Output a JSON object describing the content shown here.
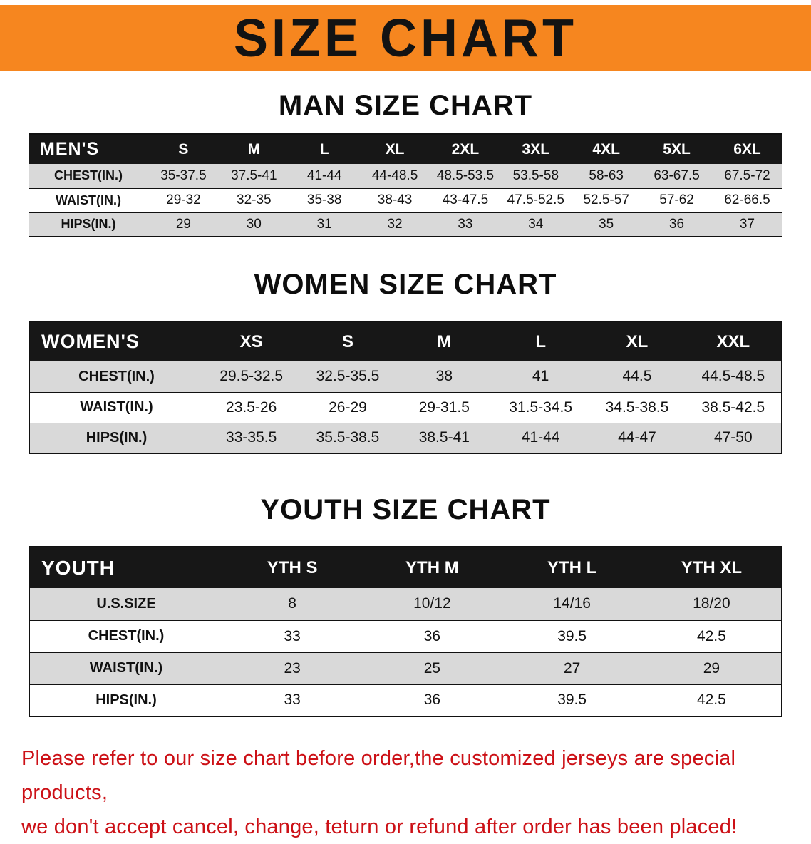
{
  "banner": {
    "title": "SIZE CHART",
    "bg_color": "#f6861f",
    "text_color": "#131313"
  },
  "colors": {
    "table_header_bg": "#171717",
    "row_alt_bg": "#d9d9d9",
    "notice_text": "#cc1016"
  },
  "men": {
    "heading": "MAN SIZE CHART",
    "table": {
      "corner": "MEN'S",
      "columns": [
        "S",
        "M",
        "L",
        "XL",
        "2XL",
        "3XL",
        "4XL",
        "5XL",
        "6XL"
      ],
      "rows": [
        {
          "label": "CHEST(IN.)",
          "values": [
            "35-37.5",
            "37.5-41",
            "41-44",
            "44-48.5",
            "48.5-53.5",
            "53.5-58",
            "58-63",
            "63-67.5",
            "67.5-72"
          ]
        },
        {
          "label": "WAIST(IN.)",
          "values": [
            "29-32",
            "32-35",
            "35-38",
            "38-43",
            "43-47.5",
            "47.5-52.5",
            "52.5-57",
            "57-62",
            "62-66.5"
          ]
        },
        {
          "label": "HIPS(IN.)",
          "values": [
            "29",
            "30",
            "31",
            "32",
            "33",
            "34",
            "35",
            "36",
            "37"
          ]
        }
      ]
    }
  },
  "women": {
    "heading": "WOMEN SIZE CHART",
    "table": {
      "corner": "WOMEN'S",
      "columns": [
        "XS",
        "S",
        "M",
        "L",
        "XL",
        "XXL"
      ],
      "rows": [
        {
          "label": "CHEST(IN.)",
          "values": [
            "29.5-32.5",
            "32.5-35.5",
            "38",
            "41",
            "44.5",
            "44.5-48.5"
          ]
        },
        {
          "label": "WAIST(IN.)",
          "values": [
            "23.5-26",
            "26-29",
            "29-31.5",
            "31.5-34.5",
            "34.5-38.5",
            "38.5-42.5"
          ]
        },
        {
          "label": "HIPS(IN.)",
          "values": [
            "33-35.5",
            "35.5-38.5",
            "38.5-41",
            "41-44",
            "44-47",
            "47-50"
          ]
        }
      ]
    }
  },
  "youth": {
    "heading": "YOUTH SIZE CHART",
    "table": {
      "corner": "YOUTH",
      "columns": [
        "YTH S",
        "YTH M",
        "YTH L",
        "YTH XL"
      ],
      "rows": [
        {
          "label": "U.S.SIZE",
          "values": [
            "8",
            "10/12",
            "14/16",
            "18/20"
          ]
        },
        {
          "label": "CHEST(IN.)",
          "values": [
            "33",
            "36",
            "39.5",
            "42.5"
          ]
        },
        {
          "label": "WAIST(IN.)",
          "values": [
            "23",
            "25",
            "27",
            "29"
          ]
        },
        {
          "label": "HIPS(IN.)",
          "values": [
            "33",
            "36",
            "39.5",
            "42.5"
          ]
        }
      ]
    }
  },
  "notice": {
    "line1": "Please refer to our size chart before order,the customized jerseys are special products,",
    "line2": "we don't accept cancel, change, teturn or refund after order has been placed!"
  }
}
